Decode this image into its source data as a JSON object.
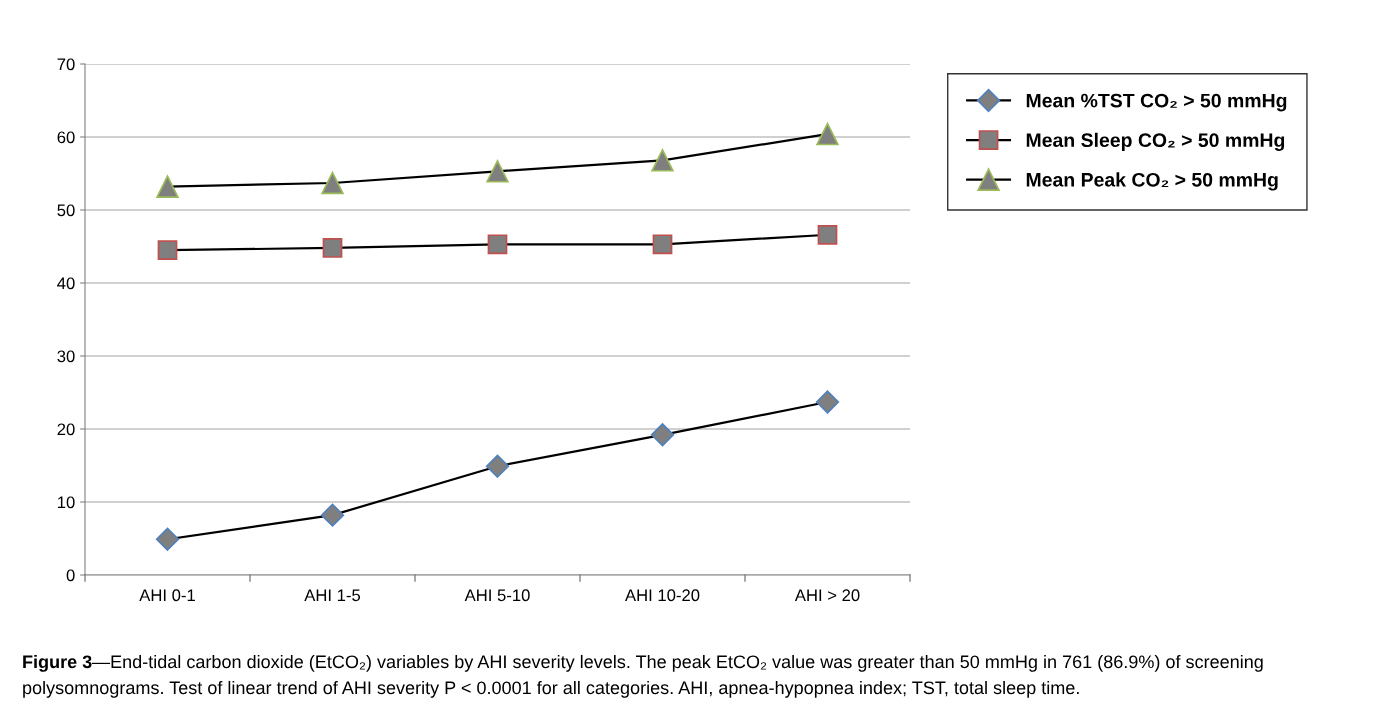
{
  "chart_data": {
    "type": "line",
    "categories": [
      "AHI 0-1",
      "AHI 1-5",
      "AHI 5-10",
      "AHI 10-20",
      "AHI > 20"
    ],
    "series": [
      {
        "name": "Mean %TST CO₂ > 50 mmHg",
        "color": "#000000",
        "marker": "diamond",
        "values": [
          4.9,
          8.2,
          14.9,
          19.2,
          23.7
        ]
      },
      {
        "name": "Mean Sleep CO₂ > 50 mmHg",
        "color": "#000000",
        "marker": "square",
        "values": [
          44.5,
          44.8,
          45.3,
          45.3,
          46.6
        ]
      },
      {
        "name": "Mean Peak CO₂ > 50 mmHg",
        "color": "#000000",
        "marker": "triangle",
        "values": [
          53.2,
          53.7,
          55.3,
          56.8,
          60.4
        ]
      }
    ],
    "ylim": [
      0,
      70
    ],
    "yticks": [
      0,
      10,
      20,
      30,
      40,
      50,
      60,
      70
    ],
    "grid": "y",
    "legend": "top right",
    "line_style": "solid",
    "annotations": [
      "Figure 3",
      "—End-tidal carbon dioxide (EtCO₂) variables by AHI severity levels. The peak EtCO₂ value was greater than 50 mmHg in 761 (86.9%) of screening",
      "polysomnograms. Test of linear trend of AHI severity P < 0.0001 for all categories. AHI, apnea-hypopnea index; TST, total sleep time."
    ]
  }
}
